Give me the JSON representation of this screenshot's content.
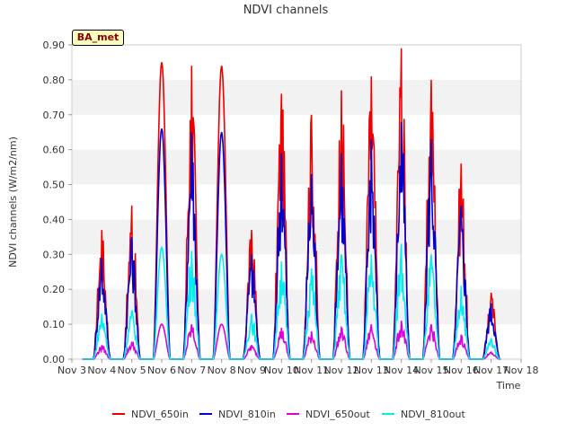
{
  "chart_data": {
    "type": "line",
    "title": "NDVI channels",
    "xlabel": "Time",
    "ylabel": "NDVI channels (W/m2/nm)",
    "badge": "BA_met",
    "xlim": [
      3,
      18
    ],
    "ylim": [
      0.0,
      0.9
    ],
    "x_ticks": [
      "Nov 3",
      "Nov 4",
      "Nov 5",
      "Nov 6",
      "Nov 7",
      "Nov 8",
      "Nov 9",
      "Nov 10",
      "Nov 11",
      "Nov 12",
      "Nov 13",
      "Nov 14",
      "Nov 15",
      "Nov 16",
      "Nov 17",
      "Nov 18"
    ],
    "y_ticks": [
      "0.00",
      "0.10",
      "0.20",
      "0.30",
      "0.40",
      "0.50",
      "0.60",
      "0.70",
      "0.80",
      "0.90"
    ],
    "grid": "horizontal bands",
    "legend_position": "bottom",
    "series": [
      {
        "name": "NDVI_650in",
        "color": "#ee0000",
        "daily_peaks": [
          0.37,
          0.44,
          0.85,
          0.84,
          0.84,
          0.37,
          0.76,
          0.7,
          0.77,
          0.81,
          0.89,
          0.8,
          0.56,
          0.19
        ]
      },
      {
        "name": "NDVI_810in",
        "color": "#0000cc",
        "daily_peaks": [
          0.29,
          0.35,
          0.66,
          0.65,
          0.65,
          0.3,
          0.59,
          0.53,
          0.59,
          0.63,
          0.68,
          0.63,
          0.44,
          0.16
        ]
      },
      {
        "name": "NDVI_650out",
        "color": "#dd00dd",
        "daily_peaks": [
          0.04,
          0.05,
          0.1,
          0.1,
          0.1,
          0.04,
          0.09,
          0.08,
          0.09,
          0.1,
          0.11,
          0.1,
          0.07,
          0.02
        ]
      },
      {
        "name": "NDVI_810out",
        "color": "#00eeee",
        "daily_peaks": [
          0.13,
          0.14,
          0.32,
          0.31,
          0.3,
          0.13,
          0.28,
          0.26,
          0.3,
          0.3,
          0.33,
          0.3,
          0.21,
          0.06
        ]
      }
    ]
  }
}
